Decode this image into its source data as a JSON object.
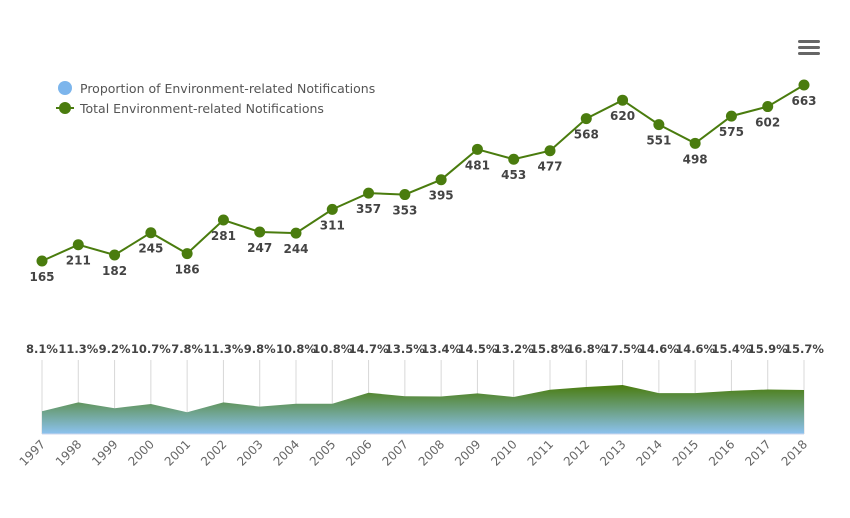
{
  "menu_icon": "hamburger-menu-icon",
  "legend": {
    "items": [
      {
        "label": "Proportion of Environment-related Notifications",
        "color": "#7cb5ec",
        "symbol": "circle"
      },
      {
        "label": "Total Environment-related Notifications",
        "color": "#4a7c0e",
        "symbol": "line-marker"
      }
    ]
  },
  "chart_data": [
    {
      "type": "line",
      "series": [
        {
          "name": "Total Environment-related Notifications",
          "color": "#4a7c0e",
          "values": [
            165,
            211,
            182,
            245,
            186,
            281,
            247,
            244,
            311,
            357,
            353,
            395,
            481,
            453,
            477,
            568,
            620,
            551,
            498,
            575,
            602,
            663
          ],
          "labels": [
            "165",
            "211",
            "182",
            "245",
            "186",
            "281",
            "247",
            "244",
            "311",
            "357",
            "353",
            "395",
            "481",
            "453",
            "477",
            "568",
            "620",
            "551",
            "498",
            "575",
            "602",
            "663"
          ]
        }
      ],
      "categories": [
        "1997",
        "1998",
        "1999",
        "2000",
        "2001",
        "2002",
        "2003",
        "2004",
        "2005",
        "2006",
        "2007",
        "2008",
        "2009",
        "2010",
        "2011",
        "2012",
        "2013",
        "2014",
        "2015",
        "2016",
        "2017",
        "2018"
      ],
      "legend_position": "top-left",
      "grid": false
    },
    {
      "type": "area",
      "series": [
        {
          "name": "Proportion of Environment-related Notifications",
          "color_top": "#4a7c0e",
          "color_bottom": "#8cc2f0",
          "values": [
            8.1,
            11.3,
            9.2,
            10.7,
            7.8,
            11.3,
            9.8,
            10.8,
            10.8,
            14.7,
            13.5,
            13.4,
            14.5,
            13.2,
            15.8,
            16.8,
            17.5,
            14.6,
            14.6,
            15.4,
            15.9,
            15.7
          ],
          "labels": [
            "8.1%",
            "11.3%",
            "9.2%",
            "10.7%",
            "7.8%",
            "11.3%",
            "9.8%",
            "10.8%",
            "10.8%",
            "14.7%",
            "13.5%",
            "13.4%",
            "14.5%",
            "13.2%",
            "15.8%",
            "16.8%",
            "17.5%",
            "14.6%",
            "14.6%",
            "15.4%",
            "15.9%",
            "15.7%"
          ]
        }
      ],
      "categories": [
        "1997",
        "1998",
        "1999",
        "2000",
        "2001",
        "2002",
        "2003",
        "2004",
        "2005",
        "2006",
        "2007",
        "2008",
        "2009",
        "2010",
        "2011",
        "2012",
        "2013",
        "2014",
        "2015",
        "2016",
        "2017",
        "2018"
      ],
      "grid": "vertical"
    }
  ]
}
